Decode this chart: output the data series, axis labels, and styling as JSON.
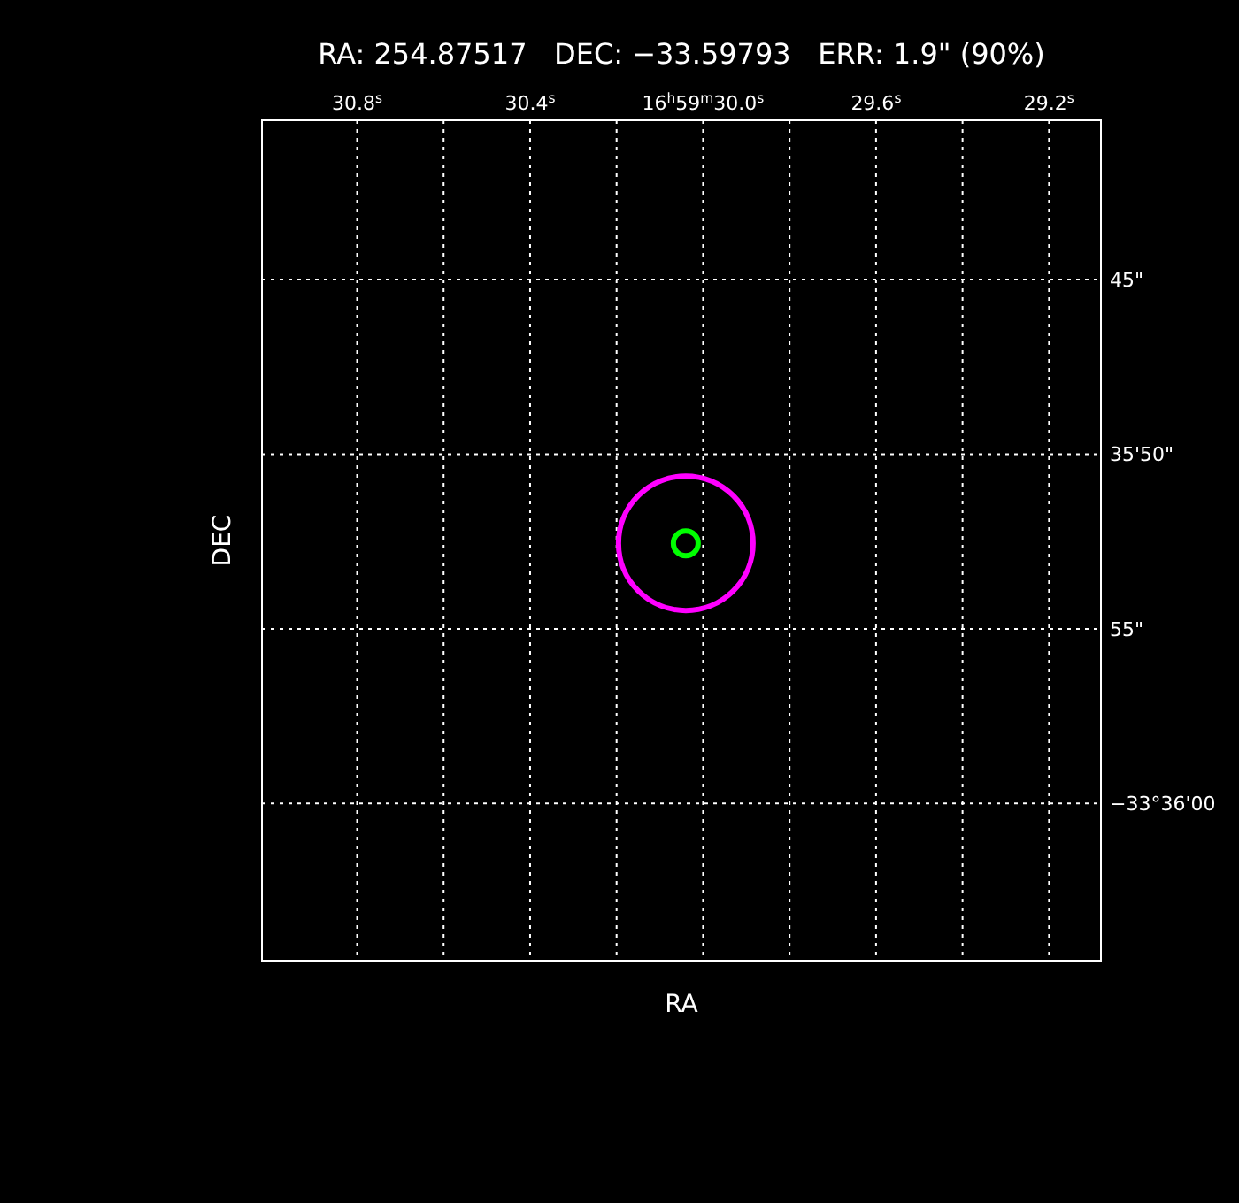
{
  "chart_data": {
    "type": "bubble",
    "title": "RA: 254.87517   DEC: −33.59793   ERR: 1.9\" (90%)",
    "xlabel": "RA",
    "ylabel": "DEC",
    "xlim": [
      31.02,
      29.08
    ],
    "ylim": [
      64.5,
      40.44
    ],
    "xticks": [
      {
        "value": 30.8,
        "label": "30.8$^{s}$"
      },
      {
        "value": 30.6,
        "label": null
      },
      {
        "value": 30.4,
        "label": "30.4$^{s}$"
      },
      {
        "value": 30.2,
        "label": null
      },
      {
        "value": 30.0,
        "label": "16$^{h}$59$^{m}$30.0$^{s}$"
      },
      {
        "value": 29.8,
        "label": null
      },
      {
        "value": 29.6,
        "label": "29.6$^{s}$"
      },
      {
        "value": 29.4,
        "label": null
      },
      {
        "value": 29.2,
        "label": "29.2$^{s}$"
      }
    ],
    "yticks": [
      {
        "value": 45,
        "label": "45\""
      },
      {
        "value": 50,
        "label": "35'50\""
      },
      {
        "value": 55,
        "label": "55\""
      },
      {
        "value": 60,
        "label": "−33°36'00"
      }
    ],
    "grid": true,
    "series": [
      {
        "color": "#ff00ff",
        "x": [
          30.04
        ],
        "values": [
          52.55
        ],
        "sizes": [
          1
        ]
      },
      {
        "color": "#00ff00",
        "x": [
          30.04
        ],
        "values": [
          52.55
        ],
        "sizes": [
          0.034
        ]
      }
    ]
  }
}
